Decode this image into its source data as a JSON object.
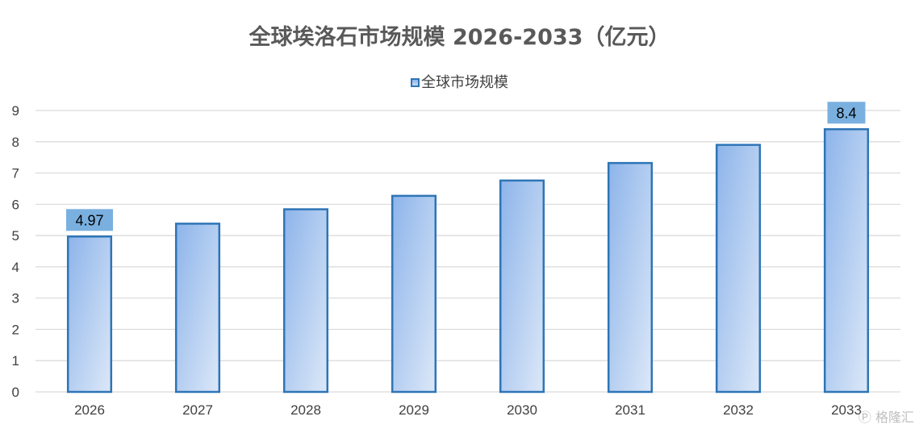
{
  "chart_data": {
    "type": "bar",
    "title": "全球埃洛石市场规模 2026-2033（亿元）",
    "xlabel": "",
    "ylabel": "",
    "categories": [
      "2026",
      "2027",
      "2028",
      "2029",
      "2030",
      "2031",
      "2032",
      "2033"
    ],
    "series": [
      {
        "name": "全球市场规模",
        "values": [
          4.97,
          5.38,
          5.84,
          6.27,
          6.76,
          7.32,
          7.9,
          8.4
        ]
      }
    ],
    "data_labels": [
      {
        "category": "2026",
        "text": "4.97"
      },
      {
        "category": "2033",
        "text": "8.4"
      }
    ],
    "ylim": [
      0,
      9
    ],
    "yticks": [
      0,
      1,
      2,
      3,
      4,
      5,
      6,
      7,
      8,
      9
    ],
    "grid": true,
    "legend_position": "top-center",
    "colors": {
      "bar_fill_top": "#8db4ea",
      "bar_fill_bottom": "#dce8f8",
      "bar_border": "#2e75b6",
      "label_box": "#7ab0e0",
      "gridline": "#d9d9d9",
      "axis_text": "#404040"
    }
  },
  "watermark": {
    "icon": "gelonghui-logo-icon",
    "text": "格隆汇"
  }
}
